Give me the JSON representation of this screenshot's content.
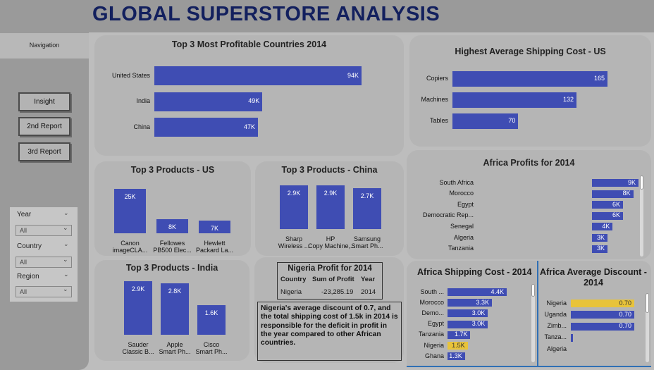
{
  "title": "GLOBAL SUPERSTORE ANALYSIS",
  "nav": {
    "label": "Navigation",
    "buttons": [
      "Insight",
      "2nd Report",
      "3rd Report"
    ]
  },
  "slicers": [
    {
      "label": "Year",
      "value": "All"
    },
    {
      "label": "Country",
      "value": "All"
    },
    {
      "label": "Region",
      "value": "All"
    }
  ],
  "charts": {
    "profitable": {
      "title": "Top 3 Most Profitable Countries 2014",
      "chart_data": {
        "type": "bar",
        "categories": [
          "United States",
          "India",
          "China"
        ],
        "values": [
          94,
          49,
          47
        ],
        "labels": [
          "94K",
          "49K",
          "47K"
        ]
      }
    },
    "shipping_us": {
      "title": "Highest Average Shipping Cost - US",
      "chart_data": {
        "type": "bar",
        "categories": [
          "Copiers",
          "Machines",
          "Tables"
        ],
        "values": [
          165,
          132,
          70
        ],
        "labels": [
          "165",
          "132",
          "70"
        ]
      }
    },
    "products_us": {
      "title": "Top 3 Products - US",
      "chart_data": {
        "type": "bar",
        "categories": [
          "Canon imageCLA...",
          "Fellowes PB500 Elec...",
          "Hewlett Packard La..."
        ],
        "values": [
          25,
          8,
          7
        ],
        "labels": [
          "25K",
          "8K",
          "7K"
        ]
      }
    },
    "products_china": {
      "title": "Top 3 Products - China",
      "chart_data": {
        "type": "bar",
        "categories": [
          "Sharp Wireless ...",
          "HP Copy Machine,...",
          "Samsung Smart Ph..."
        ],
        "values": [
          2.9,
          2.9,
          2.7
        ],
        "labels": [
          "2.9K",
          "2.9K",
          "2.7K"
        ]
      }
    },
    "products_india": {
      "title": "Top 3 Products - India",
      "chart_data": {
        "type": "bar",
        "categories": [
          "Sauder Classic B...",
          "Apple Smart Ph...",
          "Cisco Smart Ph..."
        ],
        "values": [
          2.9,
          2.8,
          1.6
        ],
        "labels": [
          "2.9K",
          "2.8K",
          "1.6K"
        ]
      }
    },
    "africa_profits": {
      "title": "Africa Profits for 2014",
      "chart_data": {
        "type": "bar",
        "categories": [
          "South Africa",
          "Morocco",
          "Egypt",
          "Democratic Rep...",
          "Senegal",
          "Algeria",
          "Tanzania"
        ],
        "values": [
          9,
          8,
          6,
          6,
          4,
          3,
          3
        ],
        "labels": [
          "9K",
          "8K",
          "6K",
          "6K",
          "4K",
          "3K",
          "3K"
        ]
      }
    },
    "africa_shipping": {
      "title": "Africa Shipping Cost - 2014",
      "chart_data": {
        "type": "bar",
        "categories": [
          "South ...",
          "Morocco",
          "Demo...",
          "Egypt",
          "Tanzania",
          "Nigeria",
          "Ghana"
        ],
        "values": [
          4.4,
          3.3,
          3.0,
          3.0,
          1.7,
          1.5,
          1.3
        ],
        "labels": [
          "4.4K",
          "3.3K",
          "3.0K",
          "3.0K",
          "1.7K",
          "1.5K",
          "1.3K"
        ],
        "highlight": "Nigeria"
      }
    },
    "africa_discount": {
      "title": "Africa Average Discount - 2014",
      "chart_data": {
        "type": "bar",
        "categories": [
          "Nigeria",
          "Uganda",
          "Zimb...",
          "Tanza...",
          "Algeria"
        ],
        "values": [
          0.7,
          0.7,
          0.7,
          0.02,
          0
        ],
        "labels": [
          "0.70",
          "0.70",
          "0.70",
          "",
          ""
        ],
        "highlight": "Nigeria"
      }
    }
  },
  "nigeria_table": {
    "title": "Nigeria Profit for 2014",
    "headers": [
      "Country",
      "Sum of Profit",
      "Year"
    ],
    "row": [
      "Nigeria",
      "-23,285.19",
      "2014"
    ]
  },
  "insight_text": "Nigeria's average discount of 0.7, and the total shipping cost of 1.5k in 2014 is responsible for the deficit in profit in the year compared to other African countries.",
  "colors": {
    "bar": "#3f4db3",
    "highlight": "#e8c33a",
    "title": "#13205e"
  }
}
